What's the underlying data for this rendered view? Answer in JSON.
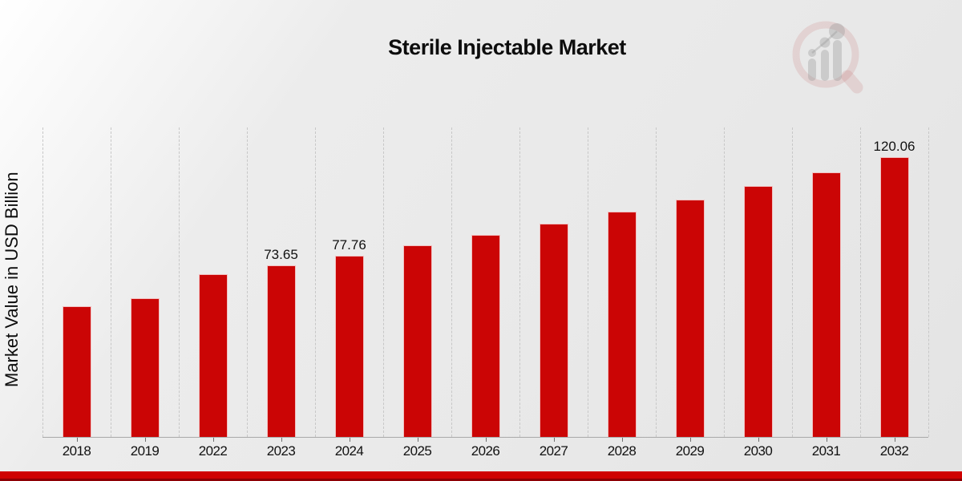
{
  "page": {
    "title": "Sterile Injectable Market",
    "y_axis_label": "Market Value in USD Billion"
  },
  "colors": {
    "bar": "#cb0505",
    "banner_top": "#cf0202",
    "banner_bottom": "#8d0005",
    "gridline": "#c7c7c7",
    "axis": "#a9a9a9",
    "text": "#111111",
    "logo_ring": "rgba(195,95,95,0.18)",
    "logo_bars": "rgba(150,150,150,0.35)"
  },
  "logo": {
    "name": "magnifier-bar-chart-watermark-logo"
  },
  "chart_data": {
    "type": "bar",
    "title": "Sterile Injectable Market",
    "xlabel": "",
    "ylabel": "Market Value in USD Billion",
    "categories": [
      "2018",
      "2019",
      "2022",
      "2023",
      "2024",
      "2025",
      "2026",
      "2027",
      "2028",
      "2029",
      "2030",
      "2031",
      "2032"
    ],
    "values": [
      56.1,
      59.4,
      69.8,
      73.65,
      77.76,
      82.1,
      86.7,
      91.5,
      96.6,
      102.0,
      107.7,
      113.7,
      120.06
    ],
    "bar_labels": [
      "",
      "",
      "",
      "73.65",
      "77.76",
      "",
      "",
      "",
      "",
      "",
      "",
      "",
      "120.06"
    ],
    "ylim": [
      0,
      132.8
    ],
    "grid": "vertical-dashed",
    "legend": null,
    "bar_color": "#cb0505"
  }
}
